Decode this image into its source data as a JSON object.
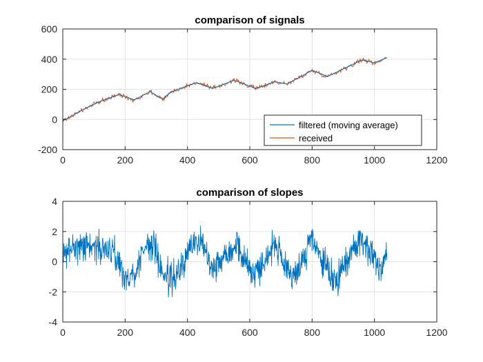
{
  "colors": {
    "filtered": "#0072BD",
    "received": "#D95319",
    "grid": "#e3e3e3",
    "axis": "#262626"
  },
  "chart_data": [
    {
      "type": "line",
      "title": "comparison of signals",
      "xlabel": "",
      "ylabel": "",
      "xlim": [
        0,
        1200
      ],
      "ylim": [
        -200,
        600
      ],
      "xticks": [
        0,
        200,
        400,
        600,
        800,
        1000,
        1200
      ],
      "yticks": [
        -200,
        0,
        200,
        400,
        600
      ],
      "grid": true,
      "legend_position": "bottom-right",
      "series": [
        {
          "name": "filtered (moving average)",
          "color": "#0072BD",
          "x": [
            0,
            60,
            120,
            180,
            230,
            280,
            320,
            350,
            430,
            480,
            550,
            620,
            680,
            720,
            800,
            850,
            960,
            1000,
            1040
          ],
          "y": [
            -10,
            60,
            120,
            165,
            130,
            185,
            135,
            185,
            245,
            205,
            260,
            205,
            250,
            235,
            325,
            285,
            395,
            375,
            410
          ]
        },
        {
          "name": "received",
          "color": "#D95319",
          "x": [
            0,
            60,
            120,
            180,
            230,
            280,
            320,
            350,
            430,
            480,
            550,
            620,
            680,
            720,
            800,
            850,
            960,
            1000,
            1040
          ],
          "y": [
            -10,
            60,
            120,
            165,
            130,
            185,
            135,
            185,
            245,
            205,
            260,
            205,
            250,
            235,
            325,
            285,
            395,
            375,
            410
          ]
        }
      ]
    },
    {
      "type": "line",
      "title": "comparison of slopes",
      "xlabel": "",
      "ylabel": "",
      "xlim": [
        0,
        1200
      ],
      "ylim": [
        -4,
        4
      ],
      "xticks": [
        0,
        200,
        400,
        600,
        800,
        1000,
        1200
      ],
      "yticks": [
        -4,
        -2,
        0,
        2,
        4
      ],
      "grid": true,
      "series": [
        {
          "color": "#0072BD",
          "x": [
            0,
            40,
            100,
            150,
            175,
            200,
            230,
            260,
            290,
            320,
            350,
            380,
            420,
            460,
            480,
            520,
            560,
            580,
            610,
            640,
            680,
            700,
            720,
            760,
            790,
            800,
            820,
            850,
            880,
            900,
            940,
            960,
            1000,
            1020,
            1040
          ],
          "y": [
            0.2,
            1.2,
            1.0,
            0.8,
            0.3,
            -1.2,
            -0.8,
            0.8,
            1.2,
            -0.8,
            -1.2,
            -0.5,
            1.4,
            1.0,
            -0.5,
            0.5,
            1.2,
            0.2,
            -0.8,
            -0.2,
            1.3,
            0.2,
            -0.9,
            -0.5,
            1.2,
            1.5,
            0.5,
            -0.6,
            -1.4,
            -0.4,
            1.2,
            1.5,
            0.3,
            -0.6,
            1.0
          ]
        }
      ]
    }
  ]
}
